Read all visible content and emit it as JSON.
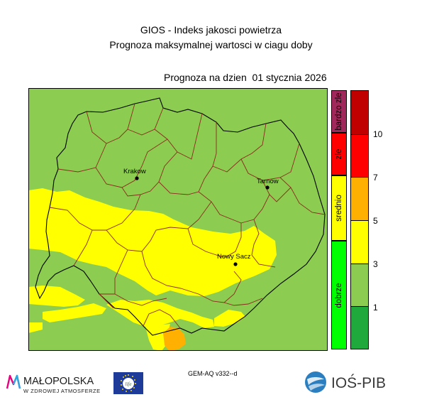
{
  "header": {
    "line1": "GIOS - Indeks jakosci powietrza",
    "line2": "Prognoza maksymalnej wartosci w ciagu doby",
    "forecast_date": "Prognoza na dzien  01 stycznia 2026"
  },
  "map": {
    "cities": [
      {
        "name": "Krakow"
      },
      {
        "name": "Tarnow"
      },
      {
        "name": "Nowy Sacz"
      }
    ]
  },
  "legend": {
    "categories": [
      {
        "label": "bardzo zle",
        "color": "#a0285a"
      },
      {
        "label": "zle",
        "color": "#ff0000"
      },
      {
        "label": "srednio",
        "color": "#ffff00"
      },
      {
        "label": "dobrze",
        "color": "#00ff00"
      }
    ],
    "scale_colors": [
      "#c00000",
      "#ff0000",
      "#ffb000",
      "#ffff00",
      "#8ccc50",
      "#1fa83c"
    ],
    "ticks": [
      "10",
      "7",
      "5",
      "3",
      "1"
    ]
  },
  "footer": {
    "model_label": "GEM-AQ v332--d",
    "malopolska_name": "MAŁOPOLSKA",
    "malopolska_sub": "W ZDROWEJ ATMOSFERZE",
    "life_text": "life",
    "ios_text": "IOŚ-PIB"
  },
  "colors": {
    "green_zone": "#8ccc50",
    "yellow_zone": "#ffff00",
    "orange_zone": "#ffb000",
    "county_border": "#8b2a1f",
    "voivodeship_border": "#000000"
  }
}
